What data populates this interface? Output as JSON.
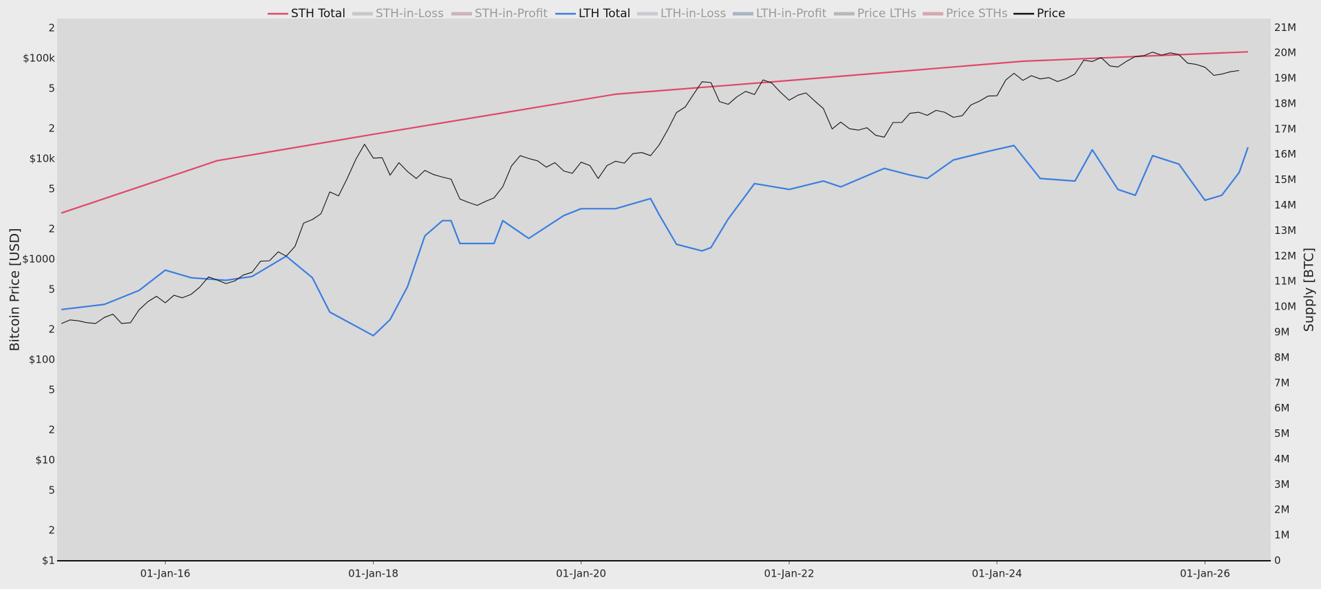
{
  "chart_data": {
    "type": "line",
    "ylabel": "Bitcoin Price [USD]",
    "y2label": "Supply [BTC]",
    "ylog": true,
    "ylim": [
      1,
      250000
    ],
    "yticks": [
      {
        "value": 1,
        "label": "$1"
      },
      2,
      5,
      {
        "value": 10,
        "label": "$10"
      },
      {
        "value": 20,
        "label": "2"
      },
      {
        "value": 50,
        "label": "5"
      },
      {
        "value": 100,
        "label": "$100"
      },
      {
        "value": 200,
        "label": "2"
      },
      {
        "value": 500,
        "label": "5"
      },
      {
        "value": 1000,
        "label": "$1000"
      },
      {
        "value": 2000,
        "label": "2"
      },
      {
        "value": 5000,
        "label": "5"
      },
      {
        "value": 10000,
        "label": "$10k"
      },
      {
        "value": 20000,
        "label": "2"
      },
      {
        "value": 50000,
        "label": "5"
      },
      {
        "value": 100000,
        "label": "$100k"
      },
      {
        "value": 200000,
        "label": "2"
      }
    ],
    "y2lim": [
      0,
      21360000
    ],
    "y2ticks": [
      0,
      {
        "value": 1000000,
        "label": "1M"
      },
      {
        "value": 2000000,
        "label": "2M"
      },
      {
        "value": 3000000,
        "label": "3M"
      },
      {
        "value": 4000000,
        "label": "4M"
      },
      {
        "value": 5000000,
        "label": "5M"
      },
      {
        "value": 6000000,
        "label": "6M"
      },
      {
        "value": 7000000,
        "label": "7M"
      },
      {
        "value": 8000000,
        "label": "8M"
      },
      {
        "value": 9000000,
        "label": "9M"
      },
      {
        "value": 10000000,
        "label": "10M"
      },
      {
        "value": 11000000,
        "label": "11M"
      },
      {
        "value": 12000000,
        "label": "12M"
      },
      {
        "value": 13000000,
        "label": "13M"
      },
      {
        "value": 14000000,
        "label": "14M"
      },
      {
        "value": 15000000,
        "label": "15M"
      },
      {
        "value": 16000000,
        "label": "16M"
      },
      {
        "value": 17000000,
        "label": "17M"
      },
      {
        "value": 18000000,
        "label": "18M"
      },
      {
        "value": 19000000,
        "label": "19M"
      },
      {
        "value": 20000000,
        "label": "20M"
      },
      {
        "value": 21000000,
        "label": "21M"
      }
    ],
    "xlim": [
      "2014-12-17",
      "2026-08-20"
    ],
    "xticks": [
      {
        "value": "2016-01-01",
        "label": "01-Jan-16"
      },
      {
        "value": "2018-01-01",
        "label": "01-Jan-18"
      },
      {
        "value": "2020-01-01",
        "label": "01-Jan-20"
      },
      {
        "value": "2022-01-01",
        "label": "01-Jan-22"
      },
      {
        "value": "2024-01-01",
        "label": "01-Jan-24"
      },
      {
        "value": "2026-01-01",
        "label": "01-Jan-26"
      }
    ],
    "series": [
      {
        "name": "STH Total",
        "color": "#e0476b",
        "axis": "y2",
        "visible": true,
        "x": [
          "2015-01",
          "2016-07",
          "2018-01",
          "2020-05",
          "2022-01",
          "2024-04",
          "2026-06"
        ],
        "values": [
          13700000,
          15760000,
          16800000,
          18380000,
          18920000,
          19680000,
          20050000
        ]
      },
      {
        "name": "STH-in-Loss",
        "color": "#c8c8c8",
        "visible": false
      },
      {
        "name": "STH-in-Profit",
        "color": "#cbb4b8",
        "visible": false
      },
      {
        "name": "LTH Total",
        "color": "#3a7de0",
        "axis": "y2",
        "visible": true,
        "x": [
          "2015-01",
          "2015-06",
          "2015-10",
          "2016-01",
          "2016-04",
          "2016-08",
          "2016-11",
          "2017-03",
          "2017-06",
          "2017-08",
          "2018-01",
          "2018-03",
          "2018-05",
          "2018-07",
          "2018-09",
          "2018-10",
          "2018-11",
          "2019-03",
          "2019-04",
          "2019-07",
          "2019-11",
          "2020-01",
          "2020-05",
          "2020-09",
          "2020-10",
          "2020-12",
          "2021-03",
          "2021-04",
          "2021-06",
          "2021-09",
          "2022-01",
          "2022-05",
          "2022-07",
          "2022-12",
          "2023-03",
          "2023-05",
          "2023-08",
          "2023-12",
          "2024-03",
          "2024-06",
          "2024-10",
          "2024-12",
          "2025-03",
          "2025-05",
          "2025-07",
          "2025-10",
          "2026-01",
          "2026-03",
          "2026-05",
          "2026-06"
        ],
        "values": [
          9900000,
          10100000,
          10650000,
          11450000,
          11150000,
          11050000,
          11200000,
          12000000,
          11150000,
          9800000,
          8870000,
          9500000,
          10800000,
          12800000,
          13400000,
          13400000,
          12500000,
          12500000,
          13400000,
          12700000,
          13600000,
          13870000,
          13870000,
          14270000,
          13640000,
          12470000,
          12210000,
          12340000,
          13470000,
          14860000,
          14630000,
          14960000,
          14730000,
          15460000,
          15200000,
          15060000,
          15790000,
          16130000,
          16360000,
          15060000,
          14960000,
          16190000,
          14630000,
          14400000,
          15960000,
          15630000,
          14200000,
          14400000,
          15300000,
          16290000
        ]
      },
      {
        "name": "LTH-in-Loss",
        "color": "#c8ccd0",
        "visible": false
      },
      {
        "name": "LTH-in-Profit",
        "color": "#aab4c4",
        "visible": false
      },
      {
        "name": "Price LTHs",
        "color": "#b8b8b8",
        "visible": false
      },
      {
        "name": "Price STHs",
        "color": "#d4a8b0",
        "visible": false
      },
      {
        "name": "Price",
        "color": "#111111",
        "axis": "y",
        "visible": true,
        "x": [
          "2015-01",
          "2015-02",
          "2015-03",
          "2015-04",
          "2015-05",
          "2015-06",
          "2015-07",
          "2015-08",
          "2015-09",
          "2015-10",
          "2015-11",
          "2015-12",
          "2016-01",
          "2016-02",
          "2016-03",
          "2016-04",
          "2016-05",
          "2016-06",
          "2016-07",
          "2016-08",
          "2016-09",
          "2016-10",
          "2016-11",
          "2016-12",
          "2017-01",
          "2017-02",
          "2017-03",
          "2017-04",
          "2017-05",
          "2017-06",
          "2017-07",
          "2017-08",
          "2017-09",
          "2017-10",
          "2017-11",
          "2017-12",
          "2018-01",
          "2018-02",
          "2018-03",
          "2018-04",
          "2018-05",
          "2018-06",
          "2018-07",
          "2018-08",
          "2018-09",
          "2018-10",
          "2018-11",
          "2018-12",
          "2019-01",
          "2019-02",
          "2019-03",
          "2019-04",
          "2019-05",
          "2019-06",
          "2019-07",
          "2019-08",
          "2019-09",
          "2019-10",
          "2019-11",
          "2019-12",
          "2020-01",
          "2020-02",
          "2020-03",
          "2020-04",
          "2020-05",
          "2020-06",
          "2020-07",
          "2020-08",
          "2020-09",
          "2020-10",
          "2020-11",
          "2020-12",
          "2021-01",
          "2021-02",
          "2021-03",
          "2021-04",
          "2021-05",
          "2021-06",
          "2021-07",
          "2021-08",
          "2021-09",
          "2021-10",
          "2021-11",
          "2021-12",
          "2022-01",
          "2022-02",
          "2022-03",
          "2022-04",
          "2022-05",
          "2022-06",
          "2022-07",
          "2022-08",
          "2022-09",
          "2022-10",
          "2022-11",
          "2022-12",
          "2023-01",
          "2023-02",
          "2023-03",
          "2023-04",
          "2023-05",
          "2023-06",
          "2023-07",
          "2023-08",
          "2023-09",
          "2023-10",
          "2023-11",
          "2023-12",
          "2024-01",
          "2024-02",
          "2024-03",
          "2024-04",
          "2024-05",
          "2024-06",
          "2024-07",
          "2024-08",
          "2024-09",
          "2024-10",
          "2024-11",
          "2024-12",
          "2025-01",
          "2025-02",
          "2025-03",
          "2025-04",
          "2025-05",
          "2025-06",
          "2025-07",
          "2025-08",
          "2025-09",
          "2025-10",
          "2025-11",
          "2025-12",
          "2026-01",
          "2026-02",
          "2026-03",
          "2026-04",
          "2026-05"
        ],
        "values": [
          230,
          250,
          245,
          235,
          230,
          265,
          285,
          230,
          235,
          315,
          380,
          430,
          370,
          440,
          415,
          450,
          530,
          670,
          625,
          575,
          610,
          700,
          745,
          960,
          970,
          1190,
          1080,
          1350,
          2300,
          2500,
          2850,
          4700,
          4300,
          6400,
          10000,
          14000,
          10200,
          10300,
          6900,
          9200,
          7500,
          6400,
          7700,
          7000,
          6600,
          6300,
          4000,
          3700,
          3450,
          3800,
          4100,
          5300,
          8500,
          10800,
          10100,
          9600,
          8300,
          9200,
          7600,
          7200,
          9300,
          8600,
          6400,
          8600,
          9500,
          9100,
          11300,
          11600,
          10800,
          13800,
          19700,
          29000,
          33000,
          45000,
          58800,
          57700,
          37300,
          35000,
          41500,
          47100,
          43800,
          61300,
          57000,
          46300,
          38500,
          43200,
          45500,
          37700,
          31800,
          19900,
          23300,
          20000,
          19400,
          20500,
          17200,
          16500,
          23100,
          23100,
          28500,
          29200,
          27200,
          30500,
          29200,
          26000,
          27000,
          34500,
          37700,
          42300,
          42600,
          61100,
          71300,
          60600,
          67500,
          62700,
          64600,
          59000,
          63300,
          70200,
          96400,
          93400,
          102400,
          84400,
          82500,
          94200,
          104600,
          107100,
          115700,
          108200,
          114000,
          109500,
          90000,
          87500,
          82000,
          68000,
          70000,
          74000,
          76000
        ]
      }
    ]
  }
}
